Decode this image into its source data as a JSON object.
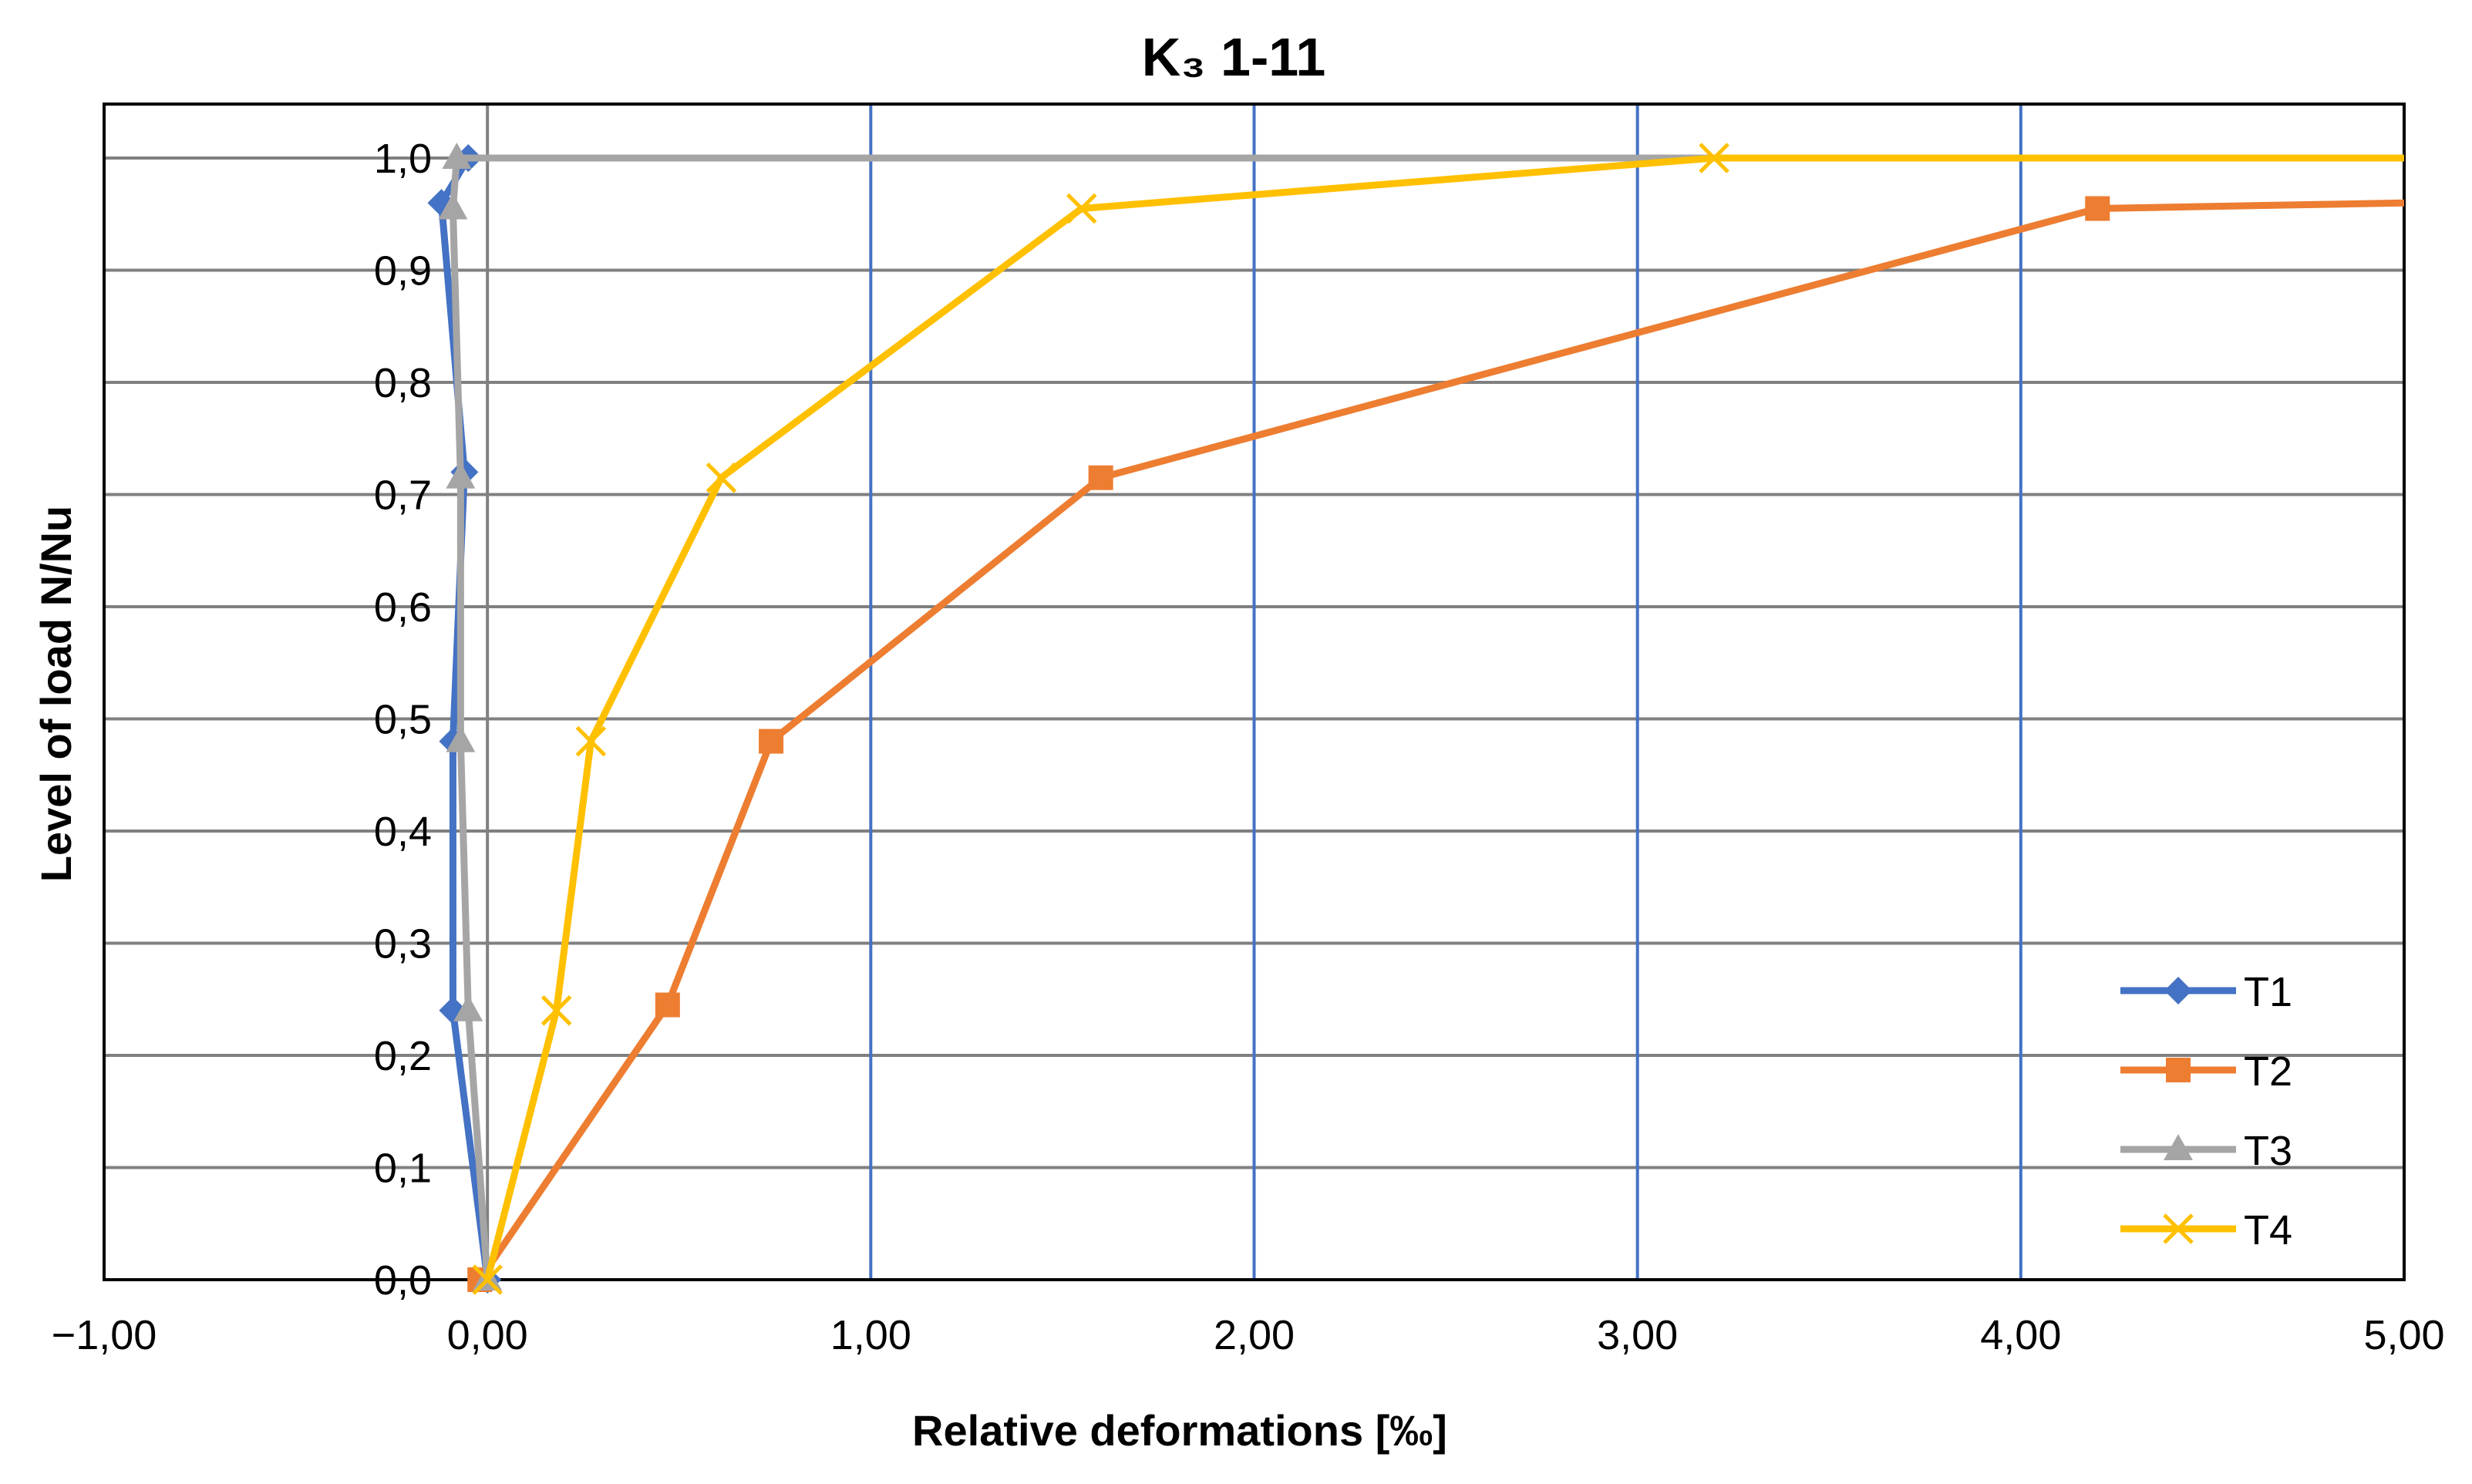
{
  "chart_data": {
    "type": "line",
    "title": "K₃  1-11",
    "xlabel": "Relative deformations [‰]",
    "ylabel": "Level of load N/Nu",
    "xlim": [
      -1.0,
      5.0
    ],
    "ylim": [
      0.0,
      1.0
    ],
    "x_ticks": [
      -1,
      0,
      1,
      2,
      3,
      4,
      5
    ],
    "x_tick_labels": [
      "−1,00",
      "0,00",
      "1,00",
      "2,00",
      "3,00",
      "4,00",
      "5,00"
    ],
    "y_ticks": [
      0,
      0.1,
      0.2,
      0.3,
      0.4,
      0.5,
      0.6,
      0.7,
      0.8,
      0.9,
      1.0
    ],
    "y_tick_labels": [
      "0,0",
      "0,1",
      "0,2",
      "0,3",
      "0,4",
      "0,5",
      "0,6",
      "0,7",
      "0,8",
      "0,9",
      "1,0"
    ],
    "grid": "both",
    "legend_position": "bottom-right",
    "series": [
      {
        "name": "T1",
        "color": "#4472C4",
        "marker": "diamond",
        "x": [
          0.0,
          -0.09,
          -0.09,
          -0.06,
          -0.12,
          -0.05,
          5.0
        ],
        "y": [
          0.0,
          0.24,
          0.48,
          0.72,
          0.96,
          1.0,
          1.0
        ]
      },
      {
        "name": "T2",
        "color": "#ED7D31",
        "marker": "square",
        "x": [
          -0.02,
          0.47,
          0.74,
          1.6,
          4.2,
          5.0
        ],
        "y": [
          0.0,
          0.245,
          0.48,
          0.715,
          0.955,
          0.96
        ]
      },
      {
        "name": "T3",
        "color": "#A5A5A5",
        "marker": "triangle",
        "x": [
          0.0,
          -0.05,
          -0.07,
          -0.07,
          -0.09,
          -0.08,
          5.0
        ],
        "y": [
          0.0,
          0.24,
          0.48,
          0.715,
          0.955,
          1.0,
          1.0
        ]
      },
      {
        "name": "T4",
        "color": "#FFC000",
        "marker": "x",
        "x": [
          0.0,
          0.18,
          0.27,
          0.61,
          1.55,
          3.2,
          5.0
        ],
        "y": [
          0.0,
          0.24,
          0.48,
          0.715,
          0.955,
          1.0,
          1.0
        ]
      }
    ]
  }
}
